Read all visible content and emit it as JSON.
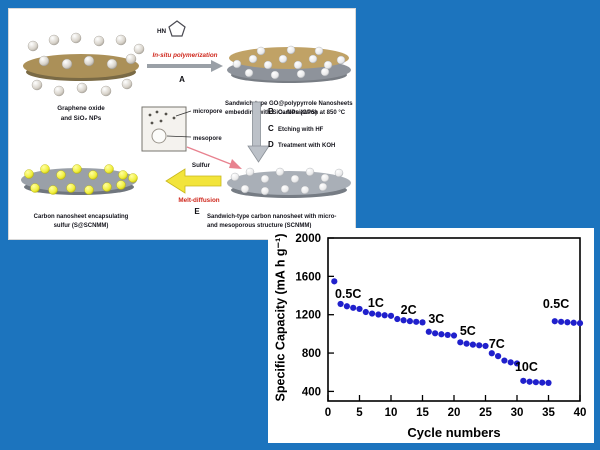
{
  "background_color": "#1c74be",
  "schematic": {
    "go_label": [
      "Graphene oxide",
      "and SiO₂ NPs"
    ],
    "pyrrole_label": "HN",
    "step_a_label": "In-situ polymerization",
    "step_a_letter": "A",
    "gps_label": [
      "Sandwich-type GO@polypyrrole Nanosheets",
      "embedding with SiO₂ NPs (GPS)"
    ],
    "micropore_label": "micropore",
    "mesopore_label": "mesopore",
    "step_b_letter": "B",
    "step_b_label": "Carbonization at 850 °C",
    "step_c_letter": "C",
    "step_c_label": "Etching with HF",
    "step_d_letter": "D",
    "step_d_label": "Treatment with KOH",
    "sulfur_label": "Sulfur",
    "melt_label": "Melt-diffusion",
    "step_e_letter": "E",
    "scnmm_label": [
      "Sandwich-type carbon nanosheet with micro-",
      "and mesoporous structure (SCNMM)"
    ],
    "s_scnmm_label": [
      "Carbon nanosheet encapsulating",
      "sulfur  (S@SCNMM)"
    ]
  },
  "chart_data": {
    "type": "scatter",
    "title": "",
    "xlabel": "Cycle numbers",
    "ylabel": "Specific Capacity (mA h g⁻¹)",
    "xlim": [
      0,
      40
    ],
    "ylim": [
      300,
      2000
    ],
    "xticks": [
      0,
      5,
      10,
      15,
      20,
      25,
      30,
      35,
      40
    ],
    "yticks": [
      400,
      800,
      1200,
      1600,
      2000
    ],
    "grid": false,
    "legend": "none",
    "marker_color": "#2020cc",
    "series": [
      {
        "name": "Specific capacity",
        "x": [
          1,
          2,
          3,
          4,
          5,
          6,
          7,
          8,
          9,
          10,
          11,
          12,
          13,
          14,
          15,
          16,
          17,
          18,
          19,
          20,
          21,
          22,
          23,
          24,
          25,
          26,
          27,
          28,
          29,
          30,
          31,
          32,
          33,
          34,
          35,
          36,
          37,
          38,
          39,
          40
        ],
        "y": [
          1548,
          1312,
          1288,
          1272,
          1260,
          1228,
          1212,
          1202,
          1194,
          1188,
          1155,
          1142,
          1133,
          1126,
          1120,
          1022,
          1006,
          996,
          989,
          983,
          912,
          898,
          888,
          881,
          874,
          798,
          768,
          722,
          703,
          692,
          510,
          501,
          496,
          492,
          489,
          1132,
          1126,
          1121,
          1116,
          1112
        ]
      }
    ],
    "annotations": [
      {
        "text": "0.5C",
        "x": 3.2,
        "y": 1375
      },
      {
        "text": "1C",
        "x": 7.6,
        "y": 1282
      },
      {
        "text": "2C",
        "x": 12.8,
        "y": 1208
      },
      {
        "text": "3C",
        "x": 17.2,
        "y": 1112
      },
      {
        "text": "5C",
        "x": 22.2,
        "y": 988
      },
      {
        "text": "7C",
        "x": 26.8,
        "y": 852
      },
      {
        "text": "10C",
        "x": 31.5,
        "y": 612
      },
      {
        "text": "0.5C",
        "x": 36.2,
        "y": 1272
      }
    ]
  }
}
